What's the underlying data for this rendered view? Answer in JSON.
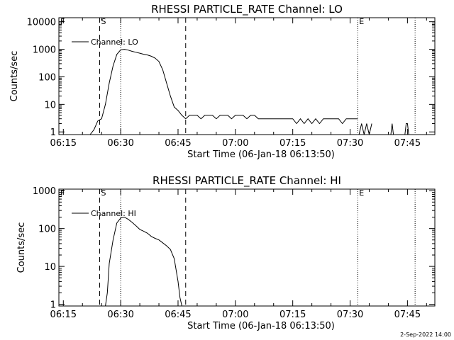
{
  "footer": {
    "date_stamp": "2-Sep-2022 14:00"
  },
  "chart_data": [
    {
      "type": "line",
      "title": "RHESSI PARTICLE_RATE Channel: LO",
      "xlabel": "Start Time (06-Jan-18 06:13:50)",
      "ylabel": "Counts/sec",
      "x_ticks": [
        "06:15",
        "06:30",
        "06:45",
        "07:00",
        "07:15",
        "07:30",
        "07:45"
      ],
      "y_ticks": [
        "1",
        "10",
        "100",
        "1000",
        "10000"
      ],
      "y_scale": "log",
      "xlim": [
        "06:13:50",
        "07:52:10"
      ],
      "ylim": [
        0.8,
        14000
      ],
      "markers": [
        {
          "time": "06:13:50",
          "label": "F",
          "style": "dotted"
        },
        {
          "time": "06:24:30",
          "label": "S",
          "style": "dashed"
        },
        {
          "time": "06:30:00",
          "label": "",
          "style": "dotted"
        },
        {
          "time": "06:47:00",
          "label": "",
          "style": "dashed"
        },
        {
          "time": "07:32:00",
          "label": "E",
          "style": "dotted"
        },
        {
          "time": "07:47:00",
          "label": "",
          "style": "dotted"
        }
      ],
      "legend": {
        "label": "Channel: LO",
        "position": "top-left"
      },
      "grid": false,
      "series": [
        {
          "name": "Channel: LO",
          "segments": [
            {
              "x": [
                "06:22:00",
                "06:23:00",
                "06:24:00",
                "06:25:00",
                "06:26:00",
                "06:27:00",
                "06:28:00",
                "06:29:00",
                "06:30:00",
                "06:31:00",
                "06:32:00",
                "06:33:00",
                "06:34:00",
                "06:35:00",
                "06:36:00",
                "06:37:00",
                "06:38:00",
                "06:39:00",
                "06:40:00",
                "06:41:00",
                "06:42:00",
                "06:43:00",
                "06:44:00",
                "06:45:00",
                "06:46:00",
                "06:47:00",
                "06:48:00",
                "06:49:00",
                "06:50:00",
                "06:51:00",
                "06:52:00",
                "06:53:00",
                "06:54:00",
                "06:55:00",
                "06:56:00",
                "06:57:00",
                "06:58:00",
                "06:59:00",
                "07:00:00",
                "07:01:00",
                "07:02:00",
                "07:03:00",
                "07:04:00",
                "07:05:00",
                "07:06:00",
                "07:07:00",
                "07:08:00",
                "07:09:00",
                "07:10:00",
                "07:11:00",
                "07:12:00",
                "07:13:00",
                "07:14:00",
                "07:15:00",
                "07:16:00",
                "07:17:00",
                "07:18:00",
                "07:19:00",
                "07:20:00",
                "07:21:00",
                "07:22:00",
                "07:23:00",
                "07:24:00",
                "07:25:00",
                "07:26:00",
                "07:27:00",
                "07:28:00",
                "07:29:00",
                "07:30:00",
                "07:31:00",
                "07:32:00"
              ],
              "y": [
                0.8,
                1.2,
                2.5,
                3,
                10,
                60,
                250,
                650,
                950,
                1000,
                930,
                840,
                780,
                720,
                660,
                620,
                560,
                480,
                360,
                180,
                60,
                20,
                8,
                6,
                4,
                3,
                4,
                4,
                4,
                3,
                4,
                4,
                4,
                3,
                4,
                4,
                4,
                3,
                4,
                4,
                4,
                3,
                4,
                4,
                3,
                3,
                3,
                3,
                3,
                3,
                3,
                3,
                3,
                3,
                2,
                3,
                2,
                3,
                2,
                3,
                2,
                3,
                3,
                3,
                3,
                3,
                2,
                3,
                3,
                3,
                3
              ]
            },
            {
              "x": [
                "07:32:20",
                "07:33:00",
                "07:33:40",
                "07:34:20",
                "07:35:00",
                "07:35:40"
              ],
              "y": [
                0.8,
                2,
                0.8,
                2,
                0.8,
                2
              ]
            },
            {
              "x": [
                "07:40:40",
                "07:41:00",
                "07:41:20"
              ],
              "y": [
                0.8,
                2,
                0.8
              ]
            },
            {
              "x": [
                "07:44:20",
                "07:44:40",
                "07:45:00",
                "07:45:20"
              ],
              "y": [
                0.8,
                2,
                2,
                0.8
              ]
            }
          ]
        }
      ]
    },
    {
      "type": "line",
      "title": "RHESSI PARTICLE_RATE Channel: HI",
      "xlabel": "Start Time (06-Jan-18 06:13:50)",
      "ylabel": "Counts/sec",
      "x_ticks": [
        "06:15",
        "06:30",
        "06:45",
        "07:00",
        "07:15",
        "07:30",
        "07:45"
      ],
      "y_ticks": [
        "1",
        "10",
        "100",
        "1000"
      ],
      "y_scale": "log",
      "xlim": [
        "06:13:50",
        "07:52:10"
      ],
      "ylim": [
        0.9,
        1100
      ],
      "markers": [
        {
          "time": "06:13:50",
          "label": "F",
          "style": "dotted"
        },
        {
          "time": "06:24:30",
          "label": "S",
          "style": "dashed"
        },
        {
          "time": "06:30:00",
          "label": "",
          "style": "dotted"
        },
        {
          "time": "06:47:00",
          "label": "",
          "style": "dashed"
        },
        {
          "time": "07:32:00",
          "label": "E",
          "style": "dotted"
        },
        {
          "time": "07:47:00",
          "label": "",
          "style": "dotted"
        }
      ],
      "legend": {
        "label": "Channel: HI",
        "position": "top-left"
      },
      "grid": false,
      "series": [
        {
          "name": "Channel: HI",
          "segments": [
            {
              "x": [
                "06:26:00",
                "06:26:30",
                "06:27:00",
                "06:28:00",
                "06:29:00",
                "06:30:00",
                "06:31:00",
                "06:32:00",
                "06:33:00",
                "06:34:00",
                "06:35:00",
                "06:36:00",
                "06:37:00",
                "06:38:00",
                "06:39:00",
                "06:40:00",
                "06:41:00",
                "06:42:00",
                "06:43:00",
                "06:44:00",
                "06:45:00",
                "06:45:30",
                "06:46:00"
              ],
              "y": [
                0.9,
                2,
                12,
                50,
                140,
                190,
                200,
                175,
                145,
                118,
                95,
                85,
                75,
                62,
                55,
                50,
                42,
                35,
                28,
                16,
                4,
                1.5,
                0.9
              ]
            }
          ]
        }
      ]
    }
  ]
}
